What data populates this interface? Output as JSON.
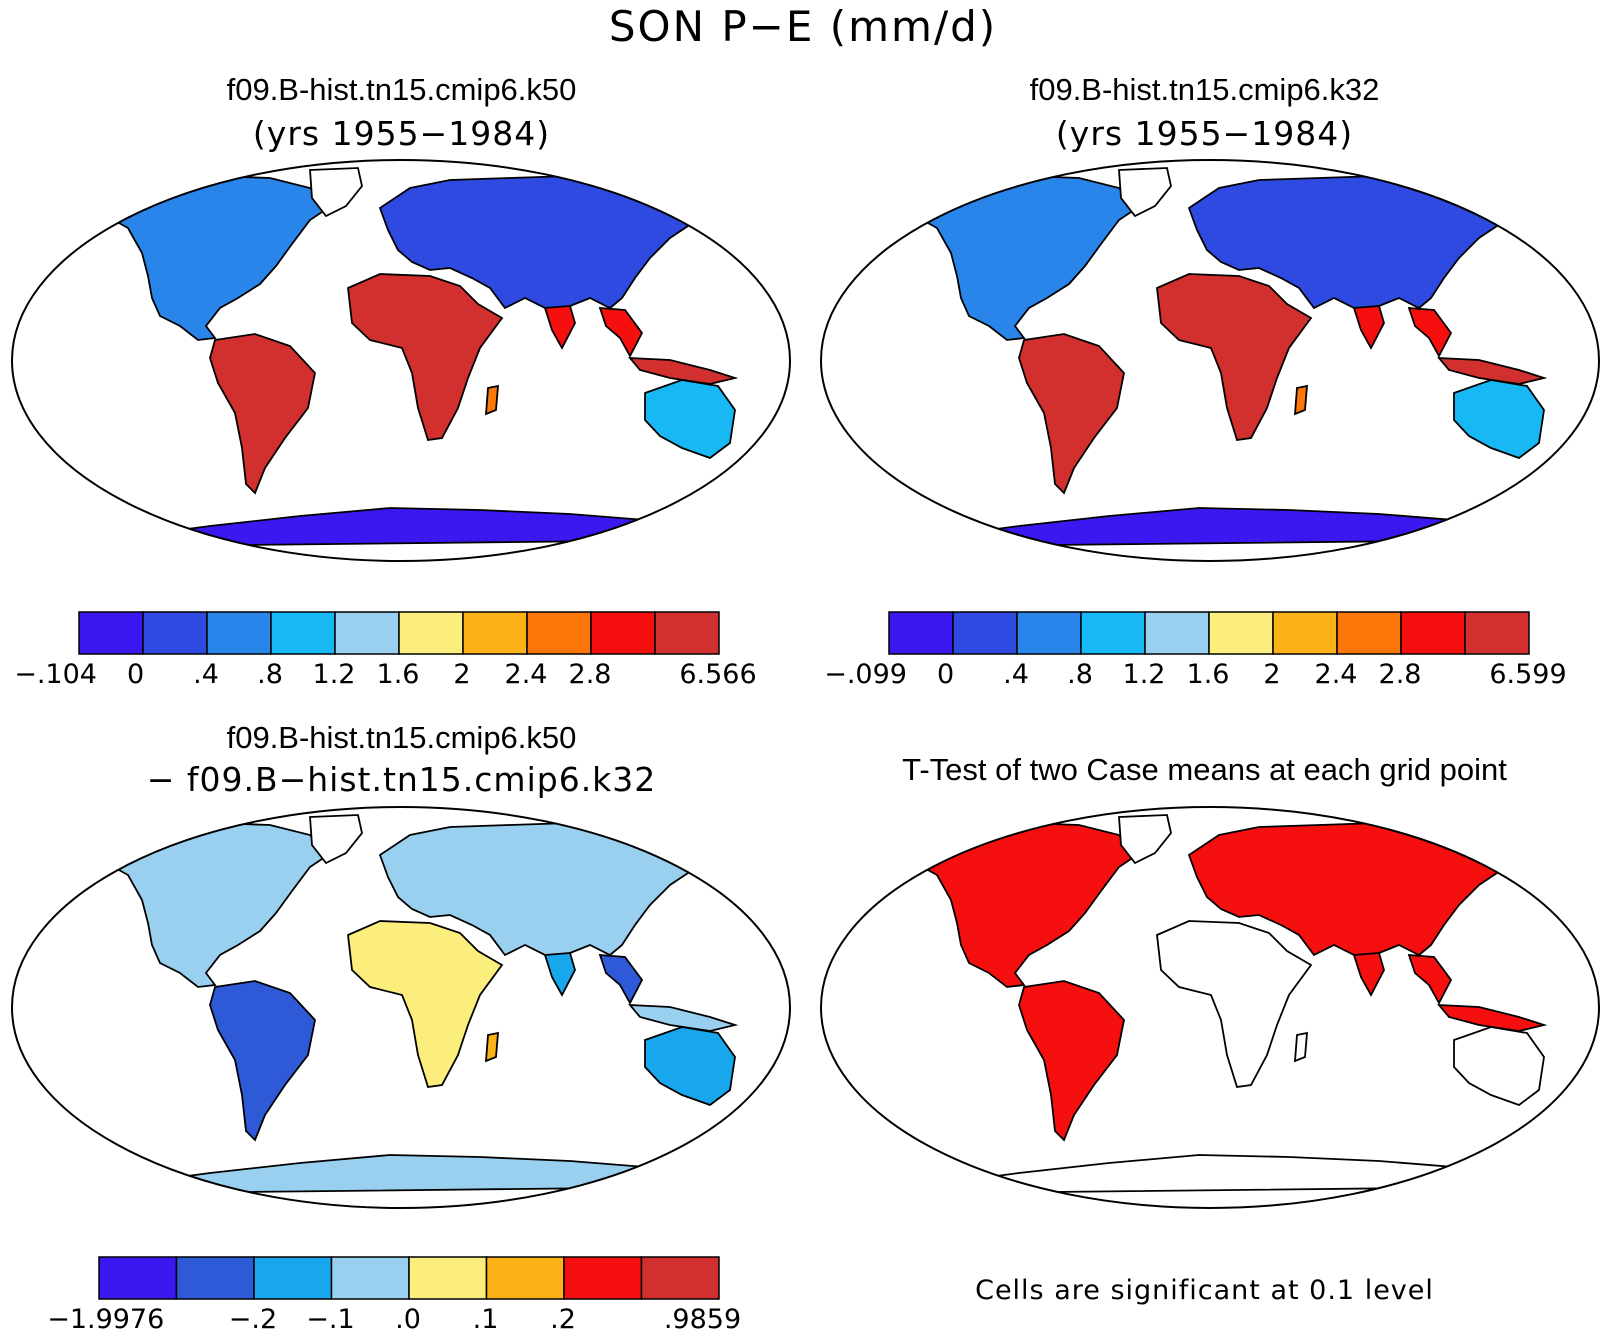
{
  "figure": {
    "title": "SON P−E (mm/d)"
  },
  "panels": [
    {
      "title": "f09.B-hist.tn15.cmip6.k50",
      "subtitle": "(yrs 1955−1984)",
      "colorbar": {
        "colors": [
          "#3b17f0",
          "#2e4ae0",
          "#2a85eb",
          "#18b8f5",
          "#9ad0ef",
          "#fbee7c",
          "#fbb317",
          "#fb7808",
          "#f50f0f",
          "#d1302f"
        ],
        "tick_labels": [
          "−.104",
          "0",
          ".4",
          ".8",
          "1.2",
          "1.6",
          "2",
          "2.4",
          "2.8",
          "6.566"
        ]
      }
    },
    {
      "title": "f09.B-hist.tn15.cmip6.k32",
      "subtitle": "(yrs 1955−1984)",
      "colorbar": {
        "colors": [
          "#3b17f0",
          "#2e4ae0",
          "#2a85eb",
          "#18b8f5",
          "#9ad0ef",
          "#fbee7c",
          "#fbb317",
          "#fb7808",
          "#f50f0f",
          "#d1302f"
        ],
        "tick_labels": [
          "−.099",
          "0",
          ".4",
          ".8",
          "1.2",
          "1.6",
          "2",
          "2.4",
          "2.8",
          "6.599"
        ]
      }
    },
    {
      "title": "f09.B-hist.tn15.cmip6.k50",
      "subtitle": "− f09.B−hist.tn15.cmip6.k32",
      "colorbar": {
        "colors": [
          "#3b17f0",
          "#2e5ad8",
          "#18a6ec",
          "#9ad0ef",
          "#fbee7c",
          "#fbb317",
          "#f50f0f",
          "#d1302f"
        ],
        "tick_labels": [
          "−1.9976",
          "−.2",
          "−.1",
          ".0",
          ".1",
          ".2",
          ".9859"
        ]
      }
    },
    {
      "title": "T-Test of two Case means at each grid point",
      "note": "Cells are significant at 0.1 level",
      "significant_color": "#f50f0f"
    }
  ]
}
